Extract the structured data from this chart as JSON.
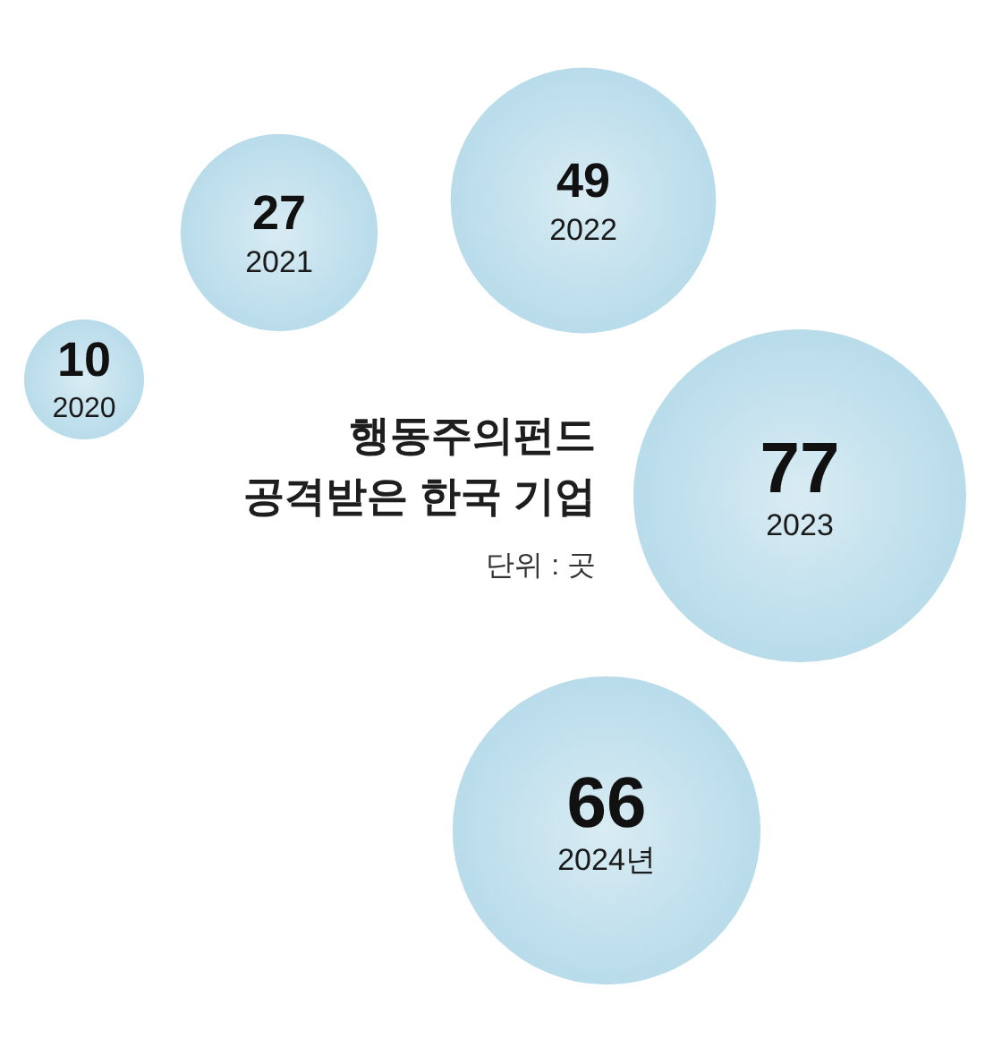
{
  "chart_data": {
    "type": "other",
    "title": "행동주의펀드 공격받은 한국 기업",
    "categories": [
      "2020",
      "2021",
      "2022",
      "2023",
      "2024년"
    ],
    "values": [
      10,
      27,
      49,
      77,
      66
    ],
    "color": "#b9dcea",
    "data_labels": true,
    "annotations": [
      "단위 : 곳"
    ]
  }
}
